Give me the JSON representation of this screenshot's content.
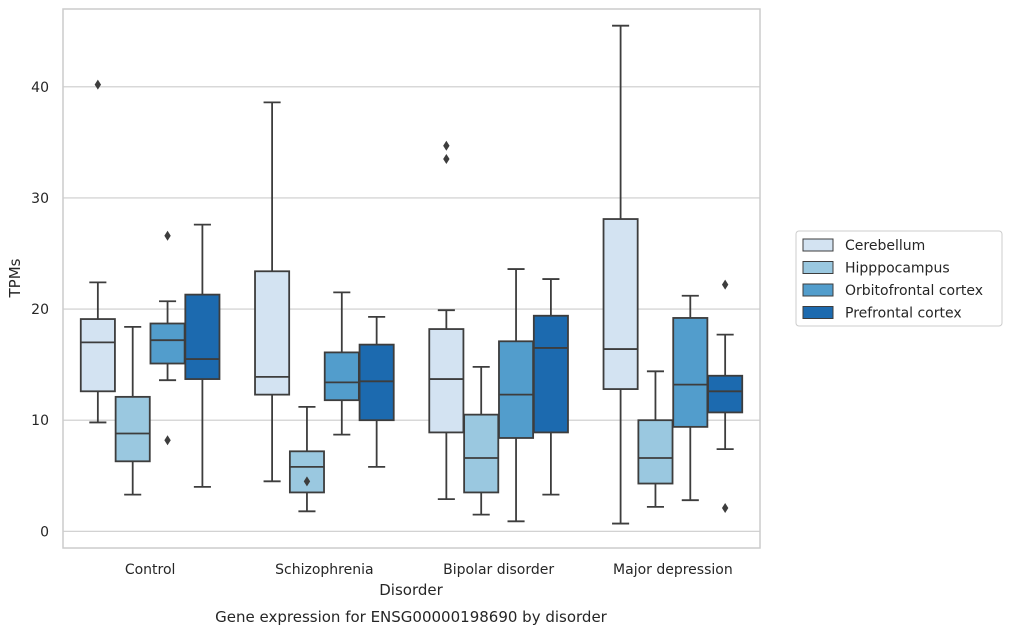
{
  "chart_data": {
    "type": "box",
    "title": "Gene expression for ENSG00000198690 by disorder",
    "xlabel": "Disorder",
    "ylabel": "TPMs",
    "ylim": [
      -1.5,
      47
    ],
    "yticks": [
      0,
      10,
      20,
      30,
      40
    ],
    "grid": true,
    "legend_position": "right",
    "categories": [
      "Control",
      "Schizophrenia",
      "Bipolar disorder",
      "Major depression"
    ],
    "series": [
      {
        "name": "Cerebellum",
        "color": "#d3e3f2",
        "boxes": [
          {
            "whisker_low": 9.8,
            "q1": 12.6,
            "median": 17.0,
            "q3": 19.1,
            "whisker_high": 22.4,
            "outliers": [
              40.2
            ]
          },
          {
            "whisker_low": 4.5,
            "q1": 12.3,
            "median": 13.9,
            "q3": 23.4,
            "whisker_high": 38.6,
            "outliers": []
          },
          {
            "whisker_low": 2.9,
            "q1": 8.9,
            "median": 13.7,
            "q3": 18.2,
            "whisker_high": 19.9,
            "outliers": [
              33.5,
              34.7
            ]
          },
          {
            "whisker_low": 0.7,
            "q1": 12.8,
            "median": 16.4,
            "q3": 28.1,
            "whisker_high": 45.5,
            "outliers": []
          }
        ]
      },
      {
        "name": "Hipppocampus",
        "color": "#9ac8e0",
        "boxes": [
          {
            "whisker_low": 3.3,
            "q1": 6.3,
            "median": 8.8,
            "q3": 12.1,
            "whisker_high": 18.4,
            "outliers": []
          },
          {
            "whisker_low": 1.8,
            "q1": 3.5,
            "median": 5.8,
            "q3": 7.2,
            "whisker_high": 11.2,
            "outliers": [
              4.5
            ]
          },
          {
            "whisker_low": 1.5,
            "q1": 3.5,
            "median": 6.6,
            "q3": 10.5,
            "whisker_high": 14.8,
            "outliers": []
          },
          {
            "whisker_low": 2.2,
            "q1": 4.3,
            "median": 6.6,
            "q3": 10.0,
            "whisker_high": 14.4,
            "outliers": []
          }
        ]
      },
      {
        "name": "Orbitofrontal cortex",
        "color": "#529dcc",
        "boxes": [
          {
            "whisker_low": 13.6,
            "q1": 15.1,
            "median": 17.2,
            "q3": 18.7,
            "whisker_high": 20.7,
            "outliers": [
              8.2,
              26.6
            ]
          },
          {
            "whisker_low": 8.7,
            "q1": 11.8,
            "median": 13.4,
            "q3": 16.1,
            "whisker_high": 21.5,
            "outliers": []
          },
          {
            "whisker_low": 0.9,
            "q1": 8.4,
            "median": 12.3,
            "q3": 17.1,
            "whisker_high": 23.6,
            "outliers": []
          },
          {
            "whisker_low": 2.8,
            "q1": 9.4,
            "median": 13.2,
            "q3": 19.2,
            "whisker_high": 21.2,
            "outliers": []
          }
        ]
      },
      {
        "name": "Prefrontal cortex",
        "color": "#1c6aaf",
        "boxes": [
          {
            "whisker_low": 4.0,
            "q1": 13.7,
            "median": 15.5,
            "q3": 21.3,
            "whisker_high": 27.6,
            "outliers": []
          },
          {
            "whisker_low": 5.8,
            "q1": 10.0,
            "median": 13.5,
            "q3": 16.8,
            "whisker_high": 19.3,
            "outliers": []
          },
          {
            "whisker_low": 3.3,
            "q1": 8.9,
            "median": 16.5,
            "q3": 19.4,
            "whisker_high": 22.7,
            "outliers": []
          },
          {
            "whisker_low": 7.4,
            "q1": 10.7,
            "median": 12.6,
            "q3": 14.0,
            "whisker_high": 17.7,
            "outliers": [
              2.1,
              22.2
            ]
          }
        ]
      }
    ]
  }
}
